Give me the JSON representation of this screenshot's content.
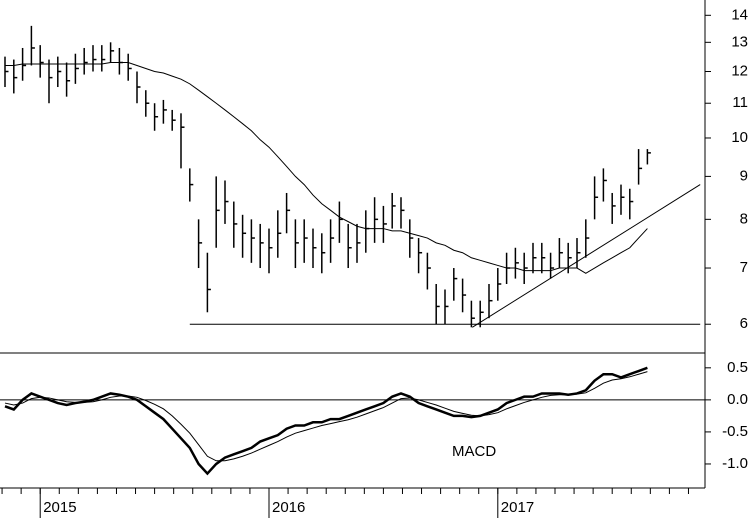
{
  "chart_data": [
    {
      "type": "ohlc",
      "log_scale": true,
      "color": "#000000",
      "categories": [
        null,
        null,
        null,
        null,
        "2015",
        null,
        null,
        null,
        null,
        null,
        null,
        null,
        null,
        null,
        null,
        null,
        null,
        null,
        null,
        null,
        null,
        null,
        null,
        null,
        null,
        null,
        null,
        null,
        null,
        null,
        "2016",
        null,
        null,
        null,
        null,
        null,
        null,
        null,
        null,
        null,
        null,
        null,
        null,
        null,
        null,
        null,
        null,
        null,
        null,
        null,
        null,
        null,
        null,
        null,
        null,
        null,
        "2017",
        null,
        null,
        null,
        null,
        null,
        null,
        null,
        null,
        null,
        null,
        null,
        null,
        null,
        null,
        null,
        null,
        null
      ],
      "high": [
        12.5,
        12.4,
        12.8,
        13.6,
        12.9,
        12.4,
        12.5,
        12.3,
        12.6,
        12.8,
        12.9,
        12.9,
        13.0,
        12.8,
        12.6,
        12.0,
        11.4,
        11.0,
        11.1,
        10.8,
        10.7,
        9.2,
        8.0,
        7.3,
        9.0,
        8.9,
        8.4,
        8.1,
        8.0,
        7.9,
        7.8,
        8.2,
        8.6,
        8.0,
        8.0,
        7.8,
        7.7,
        8.0,
        8.4,
        7.9,
        7.9,
        8.2,
        8.5,
        8.3,
        8.6,
        8.5,
        8.0,
        7.6,
        7.3,
        6.7,
        6.6,
        7.0,
        6.8,
        6.4,
        6.4,
        6.7,
        7.0,
        7.3,
        7.4,
        7.3,
        7.5,
        7.5,
        7.3,
        7.6,
        7.5,
        7.6,
        8.0,
        9.0,
        9.2,
        8.6,
        8.8,
        8.7,
        9.7,
        9.7
      ],
      "low": [
        11.5,
        11.3,
        11.7,
        12.2,
        11.8,
        11.0,
        11.5,
        11.2,
        11.6,
        11.9,
        12.0,
        12.0,
        12.3,
        11.9,
        11.7,
        11.0,
        10.6,
        10.2,
        10.4,
        10.2,
        9.2,
        8.4,
        7.0,
        6.2,
        7.4,
        7.9,
        7.4,
        7.2,
        7.1,
        7.0,
        6.9,
        7.2,
        7.7,
        7.0,
        7.1,
        7.0,
        6.9,
        7.1,
        7.5,
        7.0,
        7.1,
        7.3,
        7.5,
        7.5,
        7.8,
        7.8,
        7.2,
        6.9,
        6.6,
        6.0,
        6.0,
        6.4,
        6.2,
        5.95,
        5.95,
        6.1,
        6.4,
        6.7,
        6.8,
        6.7,
        6.9,
        6.9,
        6.8,
        7.0,
        6.9,
        7.0,
        7.2,
        8.0,
        8.4,
        7.9,
        8.1,
        8.0,
        8.8,
        9.3
      ],
      "close": [
        12.0,
        11.8,
        12.2,
        12.8,
        12.3,
        11.8,
        12.0,
        11.7,
        12.1,
        12.3,
        12.4,
        12.4,
        12.7,
        12.3,
        12.1,
        11.5,
        11.0,
        10.6,
        10.8,
        10.5,
        10.3,
        8.8,
        7.5,
        6.6,
        8.2,
        8.4,
        7.9,
        7.7,
        7.6,
        7.5,
        7.4,
        7.7,
        8.2,
        7.5,
        7.6,
        7.4,
        7.3,
        7.6,
        8.0,
        7.4,
        7.5,
        7.8,
        8.0,
        7.9,
        8.3,
        8.2,
        7.6,
        7.3,
        7.0,
        6.3,
        6.3,
        6.8,
        6.5,
        6.1,
        6.2,
        6.4,
        6.7,
        7.0,
        7.1,
        7.0,
        7.2,
        7.2,
        7.0,
        7.3,
        7.2,
        7.3,
        7.6,
        8.5,
        8.9,
        8.3,
        8.5,
        8.4,
        9.2,
        9.6
      ],
      "overlays": [
        {
          "color": "#000000",
          "values": [
            12.2,
            12.2,
            12.25,
            12.25,
            12.25,
            12.25,
            12.25,
            12.25,
            12.25,
            12.25,
            12.25,
            12.25,
            12.3,
            12.3,
            12.3,
            12.2,
            12.1,
            12.0,
            11.95,
            11.85,
            11.75,
            11.6,
            11.4,
            11.2,
            11.0,
            10.8,
            10.6,
            10.4,
            10.2,
            9.95,
            9.75,
            9.5,
            9.25,
            9.0,
            8.8,
            8.55,
            8.35,
            8.2,
            8.05,
            7.95,
            7.85,
            7.8,
            7.8,
            7.8,
            7.75,
            7.75,
            7.7,
            7.65,
            7.6,
            7.5,
            7.45,
            7.35,
            7.3,
            7.2,
            7.15,
            7.1,
            7.05,
            7.0,
            7.0,
            6.95,
            6.95,
            6.95,
            6.95,
            7.0,
            7.0,
            7.0,
            6.9,
            7.0,
            7.1,
            7.2,
            7.3,
            7.4,
            7.6,
            7.8
          ]
        }
      ],
      "trend_lines": [
        {
          "x": [
            21,
            79
          ],
          "y": [
            6.0,
            6.0
          ]
        },
        {
          "x": [
            53.1,
            79
          ],
          "y": [
            5.95,
            8.8
          ]
        }
      ],
      "ylim": [
        5.56,
        14.6
      ],
      "yticks": [
        6,
        7,
        8,
        9,
        10,
        11,
        12,
        13,
        14
      ]
    },
    {
      "type": "line",
      "annotation": "MACD",
      "zero_line": true,
      "series": [
        {
          "color": "#000000",
          "values": [
            -0.1,
            -0.15,
            0.0,
            0.1,
            0.05,
            0.0,
            -0.05,
            -0.08,
            -0.05,
            -0.03,
            0.0,
            0.05,
            0.1,
            0.08,
            0.05,
            0.0,
            -0.1,
            -0.2,
            -0.3,
            -0.45,
            -0.6,
            -0.75,
            -1.0,
            -1.15,
            -1.0,
            -0.9,
            -0.85,
            -0.8,
            -0.75,
            -0.65,
            -0.6,
            -0.55,
            -0.45,
            -0.4,
            -0.4,
            -0.35,
            -0.35,
            -0.3,
            -0.3,
            -0.25,
            -0.2,
            -0.15,
            -0.1,
            -0.05,
            0.05,
            0.1,
            0.05,
            -0.05,
            -0.1,
            -0.15,
            -0.2,
            -0.25,
            -0.25,
            -0.27,
            -0.25,
            -0.2,
            -0.15,
            -0.05,
            0.0,
            0.05,
            0.05,
            0.1,
            0.1,
            0.1,
            0.08,
            0.1,
            0.15,
            0.3,
            0.4,
            0.4,
            0.35,
            0.4,
            0.45,
            0.5
          ]
        },
        {
          "color": "#000000",
          "values": [
            -0.05,
            -0.08,
            -0.05,
            0.02,
            0.04,
            0.03,
            0.0,
            -0.03,
            -0.04,
            -0.04,
            -0.03,
            0.0,
            0.04,
            0.06,
            0.06,
            0.04,
            -0.01,
            -0.07,
            -0.14,
            -0.25,
            -0.38,
            -0.52,
            -0.7,
            -0.88,
            -0.95,
            -0.95,
            -0.92,
            -0.88,
            -0.83,
            -0.77,
            -0.71,
            -0.65,
            -0.58,
            -0.52,
            -0.48,
            -0.44,
            -0.4,
            -0.37,
            -0.34,
            -0.31,
            -0.27,
            -0.22,
            -0.17,
            -0.12,
            -0.05,
            0.02,
            0.03,
            0.0,
            -0.04,
            -0.08,
            -0.13,
            -0.18,
            -0.21,
            -0.24,
            -0.25,
            -0.23,
            -0.2,
            -0.14,
            -0.09,
            -0.04,
            0.0,
            0.04,
            0.07,
            0.08,
            0.08,
            0.09,
            0.11,
            0.18,
            0.26,
            0.31,
            0.33,
            0.36,
            0.4,
            0.44
          ]
        }
      ],
      "ylim": [
        -1.375,
        0.7
      ],
      "yticks": [
        0.5,
        {
          "value": 0,
          "label": "0.0"
        },
        -0.5,
        {
          "value": -1,
          "label": "-1.0"
        }
      ]
    }
  ]
}
